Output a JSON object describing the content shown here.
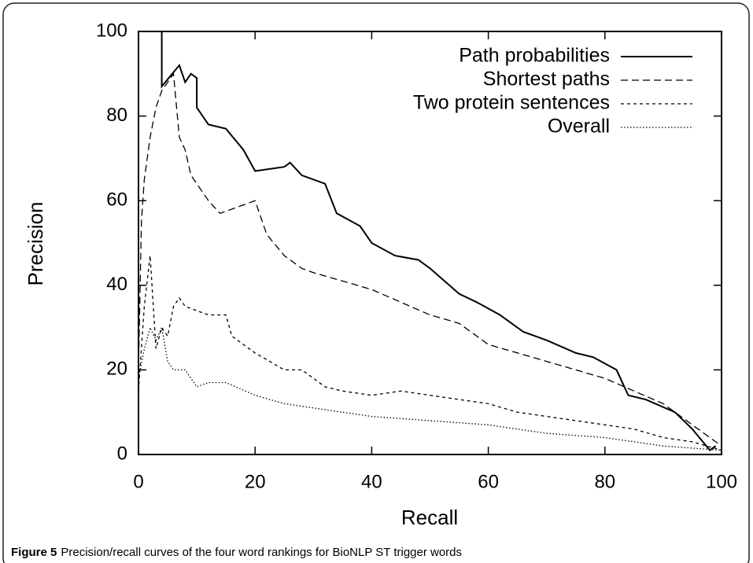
{
  "chart_data": {
    "type": "line",
    "xlabel": "Recall",
    "ylabel": "Precision",
    "figure_label": "Figure 5",
    "caption": "Precision/recall curves of the four word rankings for BioNLP ST trigger words",
    "xlim": [
      0,
      100
    ],
    "ylim": [
      0,
      100
    ],
    "xticks": [
      0,
      20,
      40,
      60,
      80,
      100
    ],
    "yticks": [
      0,
      20,
      40,
      60,
      80,
      100
    ],
    "legend": "top-right",
    "series": [
      {
        "name": "Path probabilities",
        "color": "#000000",
        "dash": "none",
        "x": [
          4,
          4,
          7,
          8,
          9,
          10,
          10,
          12,
          15,
          18,
          20,
          25,
          26,
          28,
          30,
          32,
          34,
          38,
          40,
          44,
          48,
          50,
          55,
          58,
          62,
          66,
          70,
          75,
          78,
          82,
          84,
          87,
          92,
          95,
          98,
          99
        ],
        "values": [
          100,
          87,
          92,
          88,
          90,
          89,
          82,
          78,
          77,
          72,
          67,
          68,
          69,
          66,
          65,
          64,
          57,
          54,
          50,
          47,
          46,
          44,
          38,
          36,
          33,
          29,
          27,
          24,
          23,
          20,
          14,
          13,
          10,
          6,
          1,
          2
        ]
      },
      {
        "name": "Shortest paths",
        "color": "#000000",
        "dash": "9,5",
        "x": [
          0,
          0.5,
          1,
          2,
          3,
          4,
          5,
          6,
          7,
          8,
          9,
          10,
          12,
          14,
          16,
          20,
          22,
          25,
          28,
          30,
          35,
          40,
          45,
          50,
          55,
          60,
          65,
          70,
          75,
          80,
          85,
          90,
          95,
          100
        ],
        "values": [
          20,
          55,
          65,
          75,
          82,
          86,
          88,
          90,
          75,
          72,
          66,
          64,
          60,
          57,
          58,
          60,
          52,
          47,
          44,
          43,
          41,
          39,
          36,
          33,
          31,
          26,
          24,
          22,
          20,
          18,
          15,
          12,
          7,
          2
        ]
      },
      {
        "name": "Two protein sentences",
        "color": "#000000",
        "dash": "4,4",
        "x": [
          0,
          1,
          2,
          3,
          4,
          5,
          6,
          7,
          8,
          10,
          12,
          15,
          16,
          20,
          25,
          28,
          32,
          35,
          40,
          45,
          50,
          55,
          60,
          65,
          70,
          75,
          80,
          85,
          90,
          95,
          100
        ],
        "values": [
          15,
          35,
          47,
          25,
          30,
          28,
          35,
          37,
          35,
          34,
          33,
          33,
          28,
          24,
          20,
          20,
          16,
          15,
          14,
          15,
          14,
          13,
          12,
          10,
          9,
          8,
          7,
          6,
          4,
          3,
          1
        ]
      },
      {
        "name": "Overall",
        "color": "#000000",
        "dash": "1.5,2.5",
        "x": [
          0,
          1,
          2,
          3,
          4,
          5,
          6,
          8,
          10,
          12,
          15,
          20,
          25,
          30,
          35,
          40,
          50,
          60,
          70,
          80,
          90,
          100
        ],
        "values": [
          18,
          25,
          30,
          27,
          30,
          22,
          20,
          20,
          16,
          17,
          17,
          14,
          12,
          11,
          10,
          9,
          8,
          7,
          5,
          4,
          2,
          1
        ]
      }
    ]
  }
}
